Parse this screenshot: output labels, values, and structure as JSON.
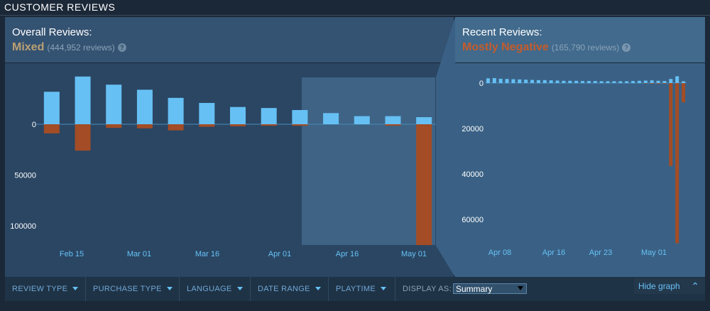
{
  "section_title": "CUSTOMER REVIEWS",
  "overall": {
    "label": "Overall Reviews:",
    "summary": "Mixed",
    "count": "(444,952 reviews)",
    "summary_color": "#b9a074"
  },
  "recent": {
    "label": "Recent Reviews:",
    "summary": "Mostly Negative",
    "count": "(165,790 reviews)",
    "summary_color": "#c35c2c"
  },
  "colors": {
    "positive": "#66c0f4",
    "negative": "#a34c25"
  },
  "chart_data": [
    {
      "type": "bar",
      "ylim": [
        120000,
        -35000
      ],
      "yticks": [
        0,
        50000,
        100000
      ],
      "xticks": [
        "Feb 15",
        "Mar 01",
        "Mar 16",
        "Apr 01",
        "Apr 16",
        "May 01"
      ],
      "series": [
        {
          "name": "positive",
          "values": [
            32000,
            47000,
            39000,
            34000,
            26000,
            21000,
            17000,
            16000,
            14000,
            11000,
            8000,
            8000,
            7000
          ]
        },
        {
          "name": "negative",
          "values": [
            9000,
            26000,
            3500,
            4000,
            6000,
            2500,
            2000,
            1500,
            1500,
            0,
            0,
            1500,
            119000
          ]
        }
      ]
    },
    {
      "type": "bar",
      "ylim": [
        72000,
        -5000
      ],
      "yticks": [
        0,
        20000,
        40000,
        60000
      ],
      "xticks": [
        "Apr 08",
        "Apr 16",
        "Apr 23",
        "May 01"
      ],
      "series": [
        {
          "name": "positive",
          "values": [
            2100,
            2200,
            1900,
            1800,
            1700,
            1600,
            1500,
            1400,
            1300,
            1300,
            1200,
            1100,
            1000,
            1000,
            1000,
            900,
            900,
            900,
            800,
            800,
            800,
            800,
            800,
            900,
            1000,
            1100,
            1200,
            1000,
            900,
            1800,
            3000,
            800
          ]
        },
        {
          "name": "negative",
          "values": [
            0,
            0,
            0,
            0,
            0,
            0,
            0,
            0,
            0,
            0,
            0,
            0,
            0,
            0,
            0,
            0,
            0,
            0,
            0,
            0,
            0,
            0,
            0,
            0,
            0,
            200,
            300,
            300,
            300,
            36500,
            70500,
            8500
          ]
        }
      ]
    }
  ],
  "filters": {
    "review_type": "REVIEW TYPE",
    "purchase_type": "PURCHASE TYPE",
    "language": "LANGUAGE",
    "date_range": "DATE RANGE",
    "playtime": "PLAYTIME",
    "display_as": "DISPLAY AS:",
    "display_value": "Summary"
  },
  "hide_graph": "Hide graph",
  "icons": {
    "help": "question-mark-icon",
    "caret": "caret-down-icon",
    "hide": "double-chevron-up-icon"
  }
}
